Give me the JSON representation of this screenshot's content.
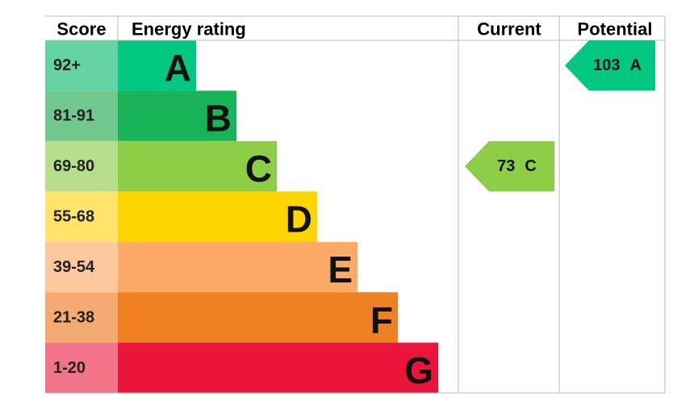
{
  "header": {
    "score": "Score",
    "rating": "Energy rating",
    "current": "Current",
    "potential": "Potential"
  },
  "bands": [
    {
      "score": "92+",
      "letter": "A",
      "color": "#00c781",
      "light": "#66d3a6"
    },
    {
      "score": "81-91",
      "letter": "B",
      "color": "#19b459",
      "light": "#72c98f"
    },
    {
      "score": "69-80",
      "letter": "C",
      "color": "#8dce46",
      "light": "#b7de8a"
    },
    {
      "score": "55-68",
      "letter": "D",
      "color": "#ffd500",
      "light": "#ffe36a"
    },
    {
      "score": "39-54",
      "letter": "E",
      "color": "#fcaa65",
      "light": "#fdc79d"
    },
    {
      "score": "21-38",
      "letter": "F",
      "color": "#ef8023",
      "light": "#f4ab73"
    },
    {
      "score": "1-20",
      "letter": "G",
      "color": "#e9153b",
      "light": "#f27489"
    }
  ],
  "current": {
    "value": 73,
    "letter": "C"
  },
  "potential": {
    "value": 103,
    "letter": "A"
  }
}
